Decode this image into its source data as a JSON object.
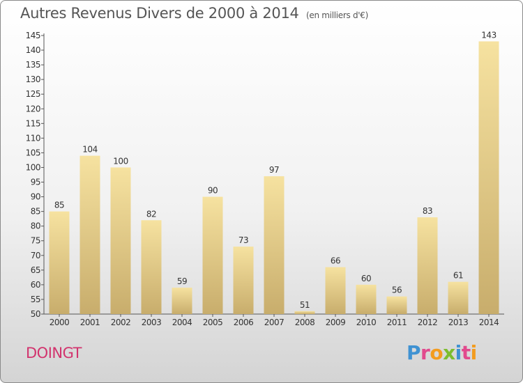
{
  "title": "Autres Revenus Divers de 2000 à 2014",
  "subtitle": "(en milliers d'€)",
  "town": "DOINGT",
  "brand": [
    "P",
    "r",
    "o",
    "x",
    "i",
    "t",
    "i"
  ],
  "colors": {
    "bar_light": "#f6e2a0",
    "bar_dark": "#c8ad6c",
    "town": "#d2336d",
    "brand": [
      "#3f92d2",
      "#e24a8d",
      "#f39c1f",
      "#7dbd2e",
      "#3f92d2",
      "#e24a8d",
      "#f39c1f"
    ]
  },
  "chart_data": {
    "type": "bar",
    "categories": [
      "2000",
      "2001",
      "2002",
      "2003",
      "2004",
      "2005",
      "2006",
      "2007",
      "2008",
      "2009",
      "2010",
      "2011",
      "2012",
      "2013",
      "2014"
    ],
    "values": [
      85,
      104,
      100,
      82,
      59,
      90,
      73,
      97,
      51,
      66,
      60,
      56,
      83,
      61,
      143
    ],
    "ylim": [
      50,
      145
    ],
    "yticks": [
      50,
      55,
      60,
      65,
      70,
      75,
      80,
      85,
      90,
      95,
      100,
      105,
      110,
      115,
      120,
      125,
      130,
      135,
      140,
      145
    ],
    "grid": false,
    "legend": "none"
  }
}
